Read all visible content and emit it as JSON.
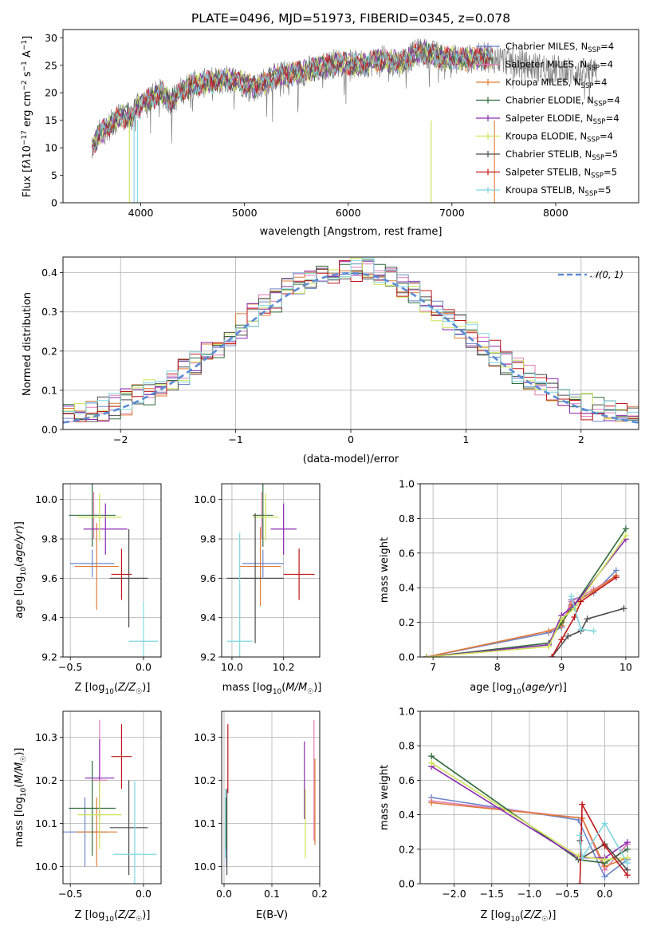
{
  "figure": {
    "title": "PLATE=0496, MJD=51973, FIBERID=0345, z=0.078"
  },
  "models": [
    {
      "name": "Chabrier MILES",
      "nssp": "4",
      "color": "#6a85c9"
    },
    {
      "name": "Salpeter MILES",
      "nssp": "4",
      "color": "#e07db7"
    },
    {
      "name": "Kroupa MILES",
      "nssp": "4",
      "color": "#e07b35"
    },
    {
      "name": "Chabrier ELODIE",
      "nssp": "4",
      "color": "#2f6b3a"
    },
    {
      "name": "Salpeter ELODIE",
      "nssp": "4",
      "color": "#8b2ab3"
    },
    {
      "name": "Kroupa ELODIE",
      "nssp": "4",
      "color": "#cde355"
    },
    {
      "name": "Chabrier STELIB",
      "nssp": "5",
      "color": "#4d4d4d"
    },
    {
      "name": "Salpeter STELIB",
      "nssp": "5",
      "color": "#c0171b"
    },
    {
      "name": "Kroupa STELIB",
      "nssp": "5",
      "color": "#7fd6df"
    }
  ],
  "chart_data": [
    {
      "id": "spectrum",
      "type": "line",
      "xlabel": "wavelength [Angstrom, rest frame]",
      "ylabel": "Flux [f_λ 10^-17 erg cm^-2 s^-1 A^-1]",
      "xlim": [
        3250,
        8800
      ],
      "ylim": [
        0,
        31.5
      ],
      "xticks": [
        4000,
        5000,
        6000,
        7000,
        8000
      ],
      "yticks": [
        0,
        5,
        10,
        15,
        20,
        25,
        30
      ],
      "legend": "top-right",
      "grid": false,
      "data_color": "#7f7f7f",
      "data_anchors": [
        [
          3530,
          10
        ],
        [
          3600,
          12.5
        ],
        [
          3700,
          14
        ],
        [
          3800,
          16
        ],
        [
          3900,
          15.5
        ],
        [
          4000,
          18
        ],
        [
          4100,
          19
        ],
        [
          4200,
          20
        ],
        [
          4300,
          18.5
        ],
        [
          4400,
          20.5
        ],
        [
          4500,
          21.5
        ],
        [
          4700,
          22
        ],
        [
          4900,
          22.5
        ],
        [
          5100,
          21
        ],
        [
          5300,
          23
        ],
        [
          5500,
          23.5
        ],
        [
          5700,
          24.5
        ],
        [
          5900,
          25.5
        ],
        [
          6100,
          25
        ],
        [
          6300,
          26
        ],
        [
          6500,
          25.5
        ],
        [
          6700,
          27.5
        ],
        [
          6900,
          26.5
        ],
        [
          7100,
          26
        ],
        [
          7300,
          26.5
        ],
        [
          7500,
          26
        ],
        [
          7700,
          25
        ],
        [
          7900,
          24.5
        ],
        [
          8100,
          24
        ],
        [
          8300,
          23.5
        ],
        [
          8400,
          23.5
        ]
      ],
      "model_end": 7400,
      "deep_lines": [
        3890,
        3935,
        3968,
        6800,
        7410
      ]
    },
    {
      "id": "residuals",
      "type": "histogram",
      "xlabel": "(data-model)/error",
      "ylabel": "Normed distribution",
      "xlim": [
        -2.5,
        2.5
      ],
      "ylim": [
        0,
        0.44
      ],
      "xticks": [
        -2,
        -1,
        0,
        1,
        2
      ],
      "yticks": [
        0,
        0.1,
        0.2,
        0.3,
        0.4
      ],
      "bin_width": 0.1,
      "grid": true,
      "gaussian_label": "𝒩(0, 1)",
      "gaussian_color": "#5b8bd6"
    },
    {
      "id": "age_vs_Z",
      "type": "errorbar",
      "xlabel": "Z [log10(Z/Z☉)]",
      "ylabel": "age [log10(age/yr)]",
      "xlim": [
        -0.55,
        0.12
      ],
      "ylim": [
        9.2,
        10.08
      ],
      "xticks": [
        -0.5,
        0,
        0.5
      ],
      "xticklabels": [
        "−0.5",
        "0.0",
        ""
      ],
      "yticks": [
        9.2,
        9.4,
        9.6,
        9.8,
        10.0
      ],
      "grid": true,
      "points": [
        {
          "model": "Chabrier MILES",
          "x": -0.35,
          "xerr": 0.15,
          "y": 9.675,
          "yerr": 0.07
        },
        {
          "model": "Salpeter MILES",
          "x": -0.34,
          "xerr": 0.05,
          "y": 9.92,
          "yerr": 0.12
        },
        {
          "model": "Kroupa MILES",
          "x": -0.32,
          "xerr": 0.15,
          "y": 9.66,
          "yerr": 0.22
        },
        {
          "model": "Chabrier ELODIE",
          "x": -0.35,
          "xerr": 0.16,
          "y": 9.92,
          "yerr": 0.16
        },
        {
          "model": "Salpeter ELODIE",
          "x": -0.26,
          "xerr": 0.15,
          "y": 9.85,
          "yerr": 0.13
        },
        {
          "model": "Kroupa ELODIE",
          "x": -0.3,
          "xerr": 0.15,
          "y": 9.91,
          "yerr": 0.12
        },
        {
          "model": "Chabrier STELIB",
          "x": -0.1,
          "xerr": 0.13,
          "y": 9.6,
          "yerr": 0.25
        },
        {
          "model": "Salpeter STELIB",
          "x": -0.15,
          "xerr": 0.07,
          "y": 9.62,
          "yerr": 0.13
        },
        {
          "model": "Kroupa STELIB",
          "x": 0.0,
          "xerr": 0.1,
          "y": 9.28,
          "yerr": 0.2
        }
      ]
    },
    {
      "id": "age_vs_mass",
      "type": "errorbar",
      "xlabel": "mass [log10(M/M☉)]",
      "ylabel": "",
      "xlim": [
        9.96,
        10.34
      ],
      "ylim": [
        9.2,
        10.08
      ],
      "xticks": [
        10.0,
        10.2
      ],
      "yticks": [
        9.2,
        9.4,
        9.6,
        9.8,
        10.0
      ],
      "grid": true,
      "points": [
        {
          "model": "Chabrier MILES",
          "x": 10.12,
          "xerr": 0.08,
          "y": 9.675,
          "yerr": 0.07
        },
        {
          "model": "Salpeter MILES",
          "x": 10.115,
          "xerr": 0.02,
          "y": 9.92,
          "yerr": 0.12
        },
        {
          "model": "Kroupa MILES",
          "x": 10.11,
          "xerr": 0.08,
          "y": 9.66,
          "yerr": 0.2
        },
        {
          "model": "Chabrier ELODIE",
          "x": 10.12,
          "xerr": 0.04,
          "y": 9.92,
          "yerr": 0.16
        },
        {
          "model": "Salpeter ELODIE",
          "x": 10.2,
          "xerr": 0.05,
          "y": 9.85,
          "yerr": 0.13
        },
        {
          "model": "Kroupa ELODIE",
          "x": 10.13,
          "xerr": 0.05,
          "y": 9.91,
          "yerr": 0.12
        },
        {
          "model": "Chabrier STELIB",
          "x": 10.09,
          "xerr": 0.11,
          "y": 9.6,
          "yerr": 0.33
        },
        {
          "model": "Salpeter STELIB",
          "x": 10.26,
          "xerr": 0.06,
          "y": 9.62,
          "yerr": 0.13
        },
        {
          "model": "Kroupa STELIB",
          "x": 10.03,
          "xerr": 0.05,
          "y": 9.28,
          "yerr": 0.55
        }
      ]
    },
    {
      "id": "mw_vs_age",
      "type": "line",
      "xlabel": "age [log10(age/yr)]",
      "ylabel": "mass weight",
      "xlim": [
        6.8,
        10.2
      ],
      "ylim": [
        0,
        1
      ],
      "xticks": [
        7,
        8,
        9,
        10
      ],
      "yticks": [
        0,
        0.2,
        0.4,
        0.6,
        0.8,
        1.0
      ],
      "grid": true,
      "series": [
        {
          "model": "Chabrier MILES",
          "x": [
            6.9,
            8.8,
            9.0,
            9.15,
            9.5,
            9.85
          ],
          "y": [
            0,
            0.14,
            0.17,
            0.33,
            0.37,
            0.5
          ]
        },
        {
          "model": "Salpeter MILES",
          "x": [
            6.9,
            8.8,
            9.0,
            9.15,
            9.5,
            9.85
          ],
          "y": [
            0,
            0.15,
            0.18,
            0.32,
            0.39,
            0.47
          ]
        },
        {
          "model": "Kroupa MILES",
          "x": [
            6.9,
            8.8,
            9.0,
            9.15,
            9.5,
            9.85
          ],
          "y": [
            0,
            0.15,
            0.18,
            0.3,
            0.38,
            0.47
          ]
        },
        {
          "model": "Chabrier ELODIE",
          "x": [
            6.9,
            8.8,
            9.0,
            9.2,
            10.0
          ],
          "y": [
            0,
            0.08,
            0.2,
            0.3,
            0.74
          ]
        },
        {
          "model": "Salpeter ELODIE",
          "x": [
            6.9,
            8.8,
            9.0,
            9.2,
            10.0
          ],
          "y": [
            0,
            0.07,
            0.24,
            0.3,
            0.68
          ]
        },
        {
          "model": "Kroupa ELODIE",
          "x": [
            6.9,
            8.8,
            9.0,
            9.2,
            10.0
          ],
          "y": [
            0,
            0.06,
            0.22,
            0.28,
            0.7
          ]
        },
        {
          "model": "Chabrier STELIB",
          "x": [
            8.85,
            9.1,
            9.3,
            9.4,
            9.97
          ],
          "y": [
            0.0,
            0.12,
            0.15,
            0.22,
            0.28
          ]
        },
        {
          "model": "Salpeter STELIB",
          "x": [
            8.85,
            9.0,
            9.2,
            9.3,
            9.85
          ],
          "y": [
            0.0,
            0.1,
            0.23,
            0.32,
            0.46
          ]
        },
        {
          "model": "Kroupa STELIB",
          "x": [
            9.15,
            9.3,
            9.5
          ],
          "y": [
            0.35,
            0.16,
            0.15
          ]
        }
      ]
    },
    {
      "id": "mass_vs_Z",
      "type": "errorbar",
      "xlabel": "Z [log10(Z/Z☉)]",
      "ylabel": "mass [log10(M/M☉)]",
      "xlim": [
        -0.55,
        0.12
      ],
      "ylim": [
        9.96,
        10.36
      ],
      "xticks": [
        -0.5,
        0
      ],
      "xticklabels": [
        "−0.5",
        "0.0"
      ],
      "yticks": [
        10.0,
        10.1,
        10.2,
        10.3
      ],
      "grid": true,
      "points": [
        {
          "model": "Chabrier MILES",
          "x": -0.4,
          "xerr": 0.15,
          "y": 10.08,
          "yerr": 0.08
        },
        {
          "model": "Salpeter MILES",
          "x": -0.3,
          "xerr": 0.05,
          "y": 10.2,
          "yerr": 0.14
        },
        {
          "model": "Kroupa MILES",
          "x": -0.32,
          "xerr": 0.14,
          "y": 10.08,
          "yerr": 0.08
        },
        {
          "model": "Chabrier ELODIE",
          "x": -0.35,
          "xerr": 0.16,
          "y": 10.135,
          "yerr": 0.11
        },
        {
          "model": "Salpeter ELODIE",
          "x": -0.3,
          "xerr": 0.1,
          "y": 10.205,
          "yerr": 0.09
        },
        {
          "model": "Kroupa ELODIE",
          "x": -0.3,
          "xerr": 0.15,
          "y": 10.12,
          "yerr": 0.08
        },
        {
          "model": "Chabrier STELIB",
          "x": -0.1,
          "xerr": 0.13,
          "y": 10.09,
          "yerr": 0.11
        },
        {
          "model": "Salpeter STELIB",
          "x": -0.15,
          "xerr": 0.07,
          "y": 10.255,
          "yerr": 0.075
        },
        {
          "model": "Kroupa STELIB",
          "x": -0.06,
          "xerr": 0.15,
          "y": 10.028,
          "yerr": 0.17
        }
      ]
    },
    {
      "id": "mass_vs_ebv",
      "type": "errorbar",
      "xlabel": "E(B-V)",
      "ylabel": "",
      "xlim": [
        -0.005,
        0.2
      ],
      "ylim": [
        9.96,
        10.36
      ],
      "xticks": [
        0.0,
        0.1,
        0.2
      ],
      "yticks": [
        10.0,
        10.1,
        10.2,
        10.3
      ],
      "grid": true,
      "points": [
        {
          "model": "Chabrier MILES",
          "x": 0.005,
          "xerr": 0,
          "y": 10.08,
          "yerr": 0.08
        },
        {
          "model": "Salpeter MILES",
          "x": 0.188,
          "xerr": 0,
          "y": 10.2,
          "yerr": 0.14
        },
        {
          "model": "Kroupa MILES",
          "x": 0.19,
          "xerr": 0,
          "y": 10.15,
          "yerr": 0.1
        },
        {
          "model": "Chabrier ELODIE",
          "x": 0.004,
          "xerr": 0,
          "y": 10.1,
          "yerr": 0.06
        },
        {
          "model": "Salpeter ELODIE",
          "x": 0.168,
          "xerr": 0,
          "y": 10.2,
          "yerr": 0.09
        },
        {
          "model": "Kroupa ELODIE",
          "x": 0.17,
          "xerr": 0,
          "y": 10.1,
          "yerr": 0.08
        },
        {
          "model": "Chabrier STELIB",
          "x": 0.006,
          "xerr": 0,
          "y": 10.08,
          "yerr": 0.1
        },
        {
          "model": "Salpeter STELIB",
          "x": 0.008,
          "xerr": 0,
          "y": 10.25,
          "yerr": 0.08
        },
        {
          "model": "Kroupa STELIB",
          "x": 0.003,
          "xerr": 0,
          "y": 10.1,
          "yerr": 0.08
        }
      ]
    },
    {
      "id": "mw_vs_Z",
      "type": "line",
      "xlabel": "Z [log10(Z/Z☉)]",
      "ylabel": "mass weight",
      "xlim": [
        -2.45,
        0.45
      ],
      "ylim": [
        0,
        1
      ],
      "xticks": [
        -2.0,
        -1.5,
        -1.0,
        -0.5,
        0.0
      ],
      "xticklabels": [
        "−2.0",
        "−1.5",
        "−1.0",
        "−0.5",
        "0.0"
      ],
      "yticks": [
        0,
        0.2,
        0.4,
        0.6,
        0.8,
        1.0
      ],
      "grid": true,
      "series": [
        {
          "model": "Chabrier MILES",
          "x": [
            -2.3,
            -0.35,
            0.0,
            0.3
          ],
          "y": [
            0.5,
            0.37,
            0.04,
            0.14
          ]
        },
        {
          "model": "Salpeter MILES",
          "x": [
            -2.3,
            -0.3,
            0.0,
            0.3
          ],
          "y": [
            0.48,
            0.38,
            0.08,
            0.23
          ]
        },
        {
          "model": "Kroupa MILES",
          "x": [
            -2.3,
            -0.3,
            0.0,
            0.3
          ],
          "y": [
            0.47,
            0.38,
            0.1,
            0.15
          ]
        },
        {
          "model": "Chabrier ELODIE",
          "x": [
            -2.3,
            -0.35,
            0.0,
            0.3
          ],
          "y": [
            0.74,
            0.14,
            0.12,
            0.2
          ]
        },
        {
          "model": "Salpeter ELODIE",
          "x": [
            -2.3,
            -0.35,
            0.0,
            0.3
          ],
          "y": [
            0.68,
            0.15,
            0.15,
            0.24
          ]
        },
        {
          "model": "Kroupa ELODIE",
          "x": [
            -2.3,
            -0.35,
            0.0,
            0.3
          ],
          "y": [
            0.7,
            0.16,
            0.14,
            0.15
          ]
        },
        {
          "model": "Chabrier STELIB",
          "x": [
            -0.33,
            -0.3,
            0.0,
            0.3
          ],
          "y": [
            0.25,
            0.15,
            0.23,
            0.08
          ]
        },
        {
          "model": "Salpeter STELIB",
          "x": [
            -0.33,
            -0.3,
            0.0,
            0.3
          ],
          "y": [
            0.0,
            0.46,
            0.22,
            0.05
          ]
        },
        {
          "model": "Kroupa STELIB",
          "x": [
            -0.33,
            -0.3,
            0.0,
            0.3
          ],
          "y": [
            0.28,
            0.15,
            0.35,
            0.12
          ]
        }
      ]
    }
  ]
}
